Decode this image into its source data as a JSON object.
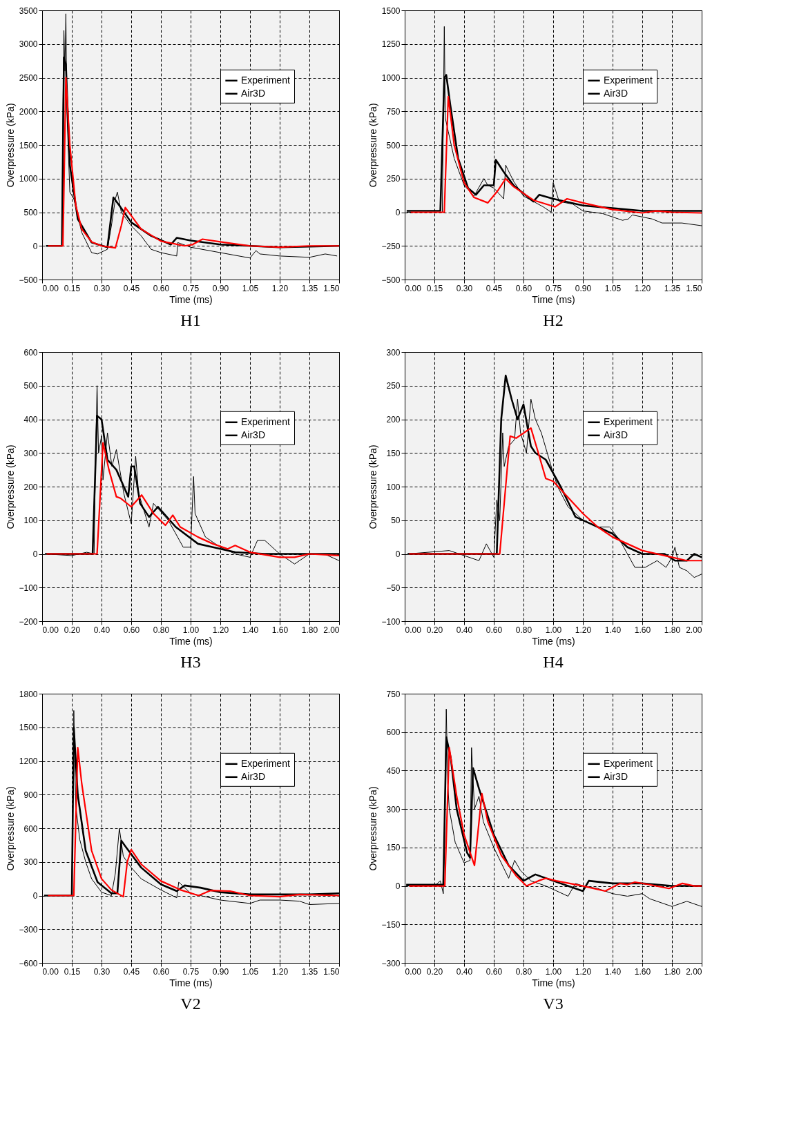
{
  "chart_data": [
    {
      "type": "line",
      "title": "H1",
      "xlabel": "Time (ms)",
      "ylabel": "Overpressure (kPa)",
      "legend": "top right",
      "grid": true,
      "line_style": "solid",
      "xlim": [
        0,
        1.5
      ],
      "ylim": [
        -500,
        3500
      ],
      "xticks": [
        {
          "value": 0,
          "label": "0.00"
        },
        {
          "value": 0.15,
          "label": "0.15"
        },
        {
          "value": 0.3,
          "label": "0.30"
        },
        {
          "value": 0.45,
          "label": "0.45"
        },
        {
          "value": 0.6,
          "label": "0.60"
        },
        {
          "value": 0.75,
          "label": "0.75"
        },
        {
          "value": 0.9,
          "label": "0.90"
        },
        {
          "value": 1.05,
          "label": "1.05"
        },
        {
          "value": 1.2,
          "label": "1.20"
        },
        {
          "value": 1.35,
          "label": "1.35"
        },
        {
          "value": 1.5,
          "label": "1.50"
        }
      ],
      "yticks": [
        -500,
        0,
        500,
        1000,
        1500,
        2000,
        2500,
        3000,
        3500
      ],
      "series": [
        {
          "name": "Experiment",
          "color": "#000000",
          "x": [
            0.02,
            0.1,
            0.105,
            0.11,
            0.115,
            0.12,
            0.125,
            0.14,
            0.16,
            0.2,
            0.25,
            0.28,
            0.33,
            0.35,
            0.37,
            0.38,
            0.4,
            0.45,
            0.5,
            0.55,
            0.6,
            0.68,
            0.685,
            0.75,
            0.9,
            1.05,
            1.08,
            1.1,
            1.2,
            1.35,
            1.43,
            1.49
          ],
          "values": [
            0,
            0,
            2000,
            3200,
            2600,
            3450,
            2000,
            800,
            700,
            200,
            -100,
            -120,
            -50,
            300,
            700,
            800,
            500,
            300,
            150,
            -50,
            -100,
            -150,
            50,
            -20,
            -100,
            -180,
            -70,
            -120,
            -150,
            -170,
            -120,
            -150
          ]
        },
        {
          "name": "Air3D",
          "color": "#000000",
          "x": [
            0.02,
            0.1,
            0.11,
            0.12,
            0.14,
            0.18,
            0.25,
            0.33,
            0.36,
            0.39,
            0.45,
            0.55,
            0.65,
            0.68,
            0.75,
            0.9,
            1.05,
            1.2,
            1.35,
            1.5
          ],
          "values": [
            0,
            0,
            2800,
            2700,
            1200,
            400,
            50,
            -20,
            720,
            600,
            350,
            150,
            20,
            120,
            80,
            20,
            0,
            -20,
            -10,
            0
          ]
        },
        {
          "color": "#ff0000",
          "x": [
            0.03,
            0.105,
            0.12,
            0.14,
            0.17,
            0.2,
            0.25,
            0.3,
            0.37,
            0.4,
            0.42,
            0.45,
            0.5,
            0.6,
            0.72,
            0.76,
            0.81,
            0.9,
            1.05,
            1.2,
            1.35,
            1.5
          ],
          "values": [
            0,
            0,
            2500,
            1500,
            600,
            250,
            60,
            0,
            -30,
            300,
            570,
            450,
            250,
            70,
            0,
            20,
            100,
            60,
            0,
            -20,
            0,
            0
          ]
        }
      ]
    },
    {
      "type": "line",
      "title": "H2",
      "xlabel": "Time (ms)",
      "ylabel": "Overpressure (kPa)",
      "legend": "top right",
      "grid": true,
      "line_style": "solid",
      "xlim": [
        0,
        1.5
      ],
      "ylim": [
        -500,
        1500
      ],
      "xticks": [
        {
          "value": 0,
          "label": "0.00"
        },
        {
          "value": 0.15,
          "label": "0.15"
        },
        {
          "value": 0.3,
          "label": "0.30"
        },
        {
          "value": 0.45,
          "label": "0.45"
        },
        {
          "value": 0.6,
          "label": "0.60"
        },
        {
          "value": 0.75,
          "label": "0.75"
        },
        {
          "value": 0.9,
          "label": "0.90"
        },
        {
          "value": 1.05,
          "label": "1.05"
        },
        {
          "value": 1.2,
          "label": "1.20"
        },
        {
          "value": 1.35,
          "label": "1.35"
        },
        {
          "value": 1.5,
          "label": "1.50"
        }
      ],
      "yticks": [
        -500,
        -250,
        0,
        250,
        500,
        750,
        1000,
        1250,
        1500
      ],
      "series": [
        {
          "name": "Experiment",
          "color": "#000000",
          "x": [
            0.01,
            0.19,
            0.2,
            0.205,
            0.22,
            0.25,
            0.3,
            0.35,
            0.4,
            0.42,
            0.45,
            0.5,
            0.51,
            0.55,
            0.6,
            0.7,
            0.74,
            0.75,
            0.78,
            0.85,
            0.9,
            1.0,
            1.1,
            1.13,
            1.15,
            1.25,
            1.3,
            1.4,
            1.5
          ],
          "values": [
            0,
            0,
            1380,
            700,
            600,
            400,
            200,
            120,
            250,
            200,
            180,
            100,
            350,
            230,
            120,
            40,
            0,
            220,
            80,
            60,
            10,
            -10,
            -60,
            -50,
            -20,
            -50,
            -80,
            -80,
            -100
          ]
        },
        {
          "name": "Air3D",
          "color": "#000000",
          "x": [
            0.01,
            0.18,
            0.2,
            0.21,
            0.23,
            0.27,
            0.32,
            0.36,
            0.4,
            0.45,
            0.46,
            0.5,
            0.55,
            0.65,
            0.68,
            0.75,
            0.9,
            1.05,
            1.2,
            1.35,
            1.5
          ],
          "values": [
            10,
            10,
            1000,
            1020,
            800,
            400,
            180,
            130,
            200,
            200,
            390,
            300,
            200,
            80,
            130,
            100,
            50,
            30,
            10,
            10,
            10
          ]
        },
        {
          "color": "#ff0000",
          "x": [
            0.03,
            0.2,
            0.22,
            0.25,
            0.3,
            0.35,
            0.42,
            0.47,
            0.51,
            0.55,
            0.65,
            0.76,
            0.82,
            0.9,
            1.05,
            1.2,
            1.27,
            1.35,
            1.5
          ],
          "values": [
            0,
            0,
            860,
            500,
            220,
            110,
            70,
            160,
            250,
            190,
            90,
            40,
            100,
            70,
            20,
            -5,
            10,
            0,
            -5
          ]
        }
      ]
    },
    {
      "type": "line",
      "title": "H3",
      "xlabel": "Time (ms)",
      "ylabel": "Overpressure (kPa)",
      "legend": "top right",
      "grid": true,
      "line_style": "solid",
      "xlim": [
        0,
        2
      ],
      "ylim": [
        -200,
        600
      ],
      "xticks": [
        {
          "value": 0,
          "label": "0.00"
        },
        {
          "value": 0.2,
          "label": "0.20"
        },
        {
          "value": 0.4,
          "label": "0.40"
        },
        {
          "value": 0.6,
          "label": "0.60"
        },
        {
          "value": 0.8,
          "label": "0.80"
        },
        {
          "value": 1.0,
          "label": "1.00"
        },
        {
          "value": 1.2,
          "label": "1.20"
        },
        {
          "value": 1.4,
          "label": "1.40"
        },
        {
          "value": 1.6,
          "label": "1.60"
        },
        {
          "value": 1.8,
          "label": "1.80"
        },
        {
          "value": 2.0,
          "label": "2.00"
        }
      ],
      "yticks": [
        -200,
        -100,
        0,
        100,
        200,
        300,
        400,
        500,
        600
      ],
      "series": [
        {
          "name": "Experiment",
          "color": "#000000",
          "x": [
            0.02,
            0.2,
            0.3,
            0.35,
            0.36,
            0.37,
            0.38,
            0.4,
            0.41,
            0.44,
            0.47,
            0.5,
            0.55,
            0.6,
            0.63,
            0.65,
            0.72,
            0.75,
            0.85,
            0.95,
            1.0,
            1.02,
            1.03,
            1.1,
            1.2,
            1.3,
            1.4,
            1.45,
            1.5,
            1.6,
            1.7,
            1.8,
            1.9,
            2.0
          ],
          "values": [
            0,
            -5,
            5,
            0,
            300,
            500,
            300,
            350,
            220,
            360,
            260,
            310,
            180,
            90,
            290,
            180,
            80,
            150,
            100,
            20,
            20,
            230,
            120,
            50,
            20,
            0,
            -10,
            40,
            40,
            0,
            -30,
            0,
            0,
            -20
          ]
        },
        {
          "name": "Air3D",
          "color": "#000000",
          "x": [
            0.02,
            0.34,
            0.37,
            0.4,
            0.44,
            0.5,
            0.58,
            0.6,
            0.62,
            0.66,
            0.72,
            0.78,
            0.9,
            1.05,
            1.15,
            1.3,
            1.5,
            1.7,
            2.0
          ],
          "values": [
            0,
            0,
            410,
            400,
            280,
            250,
            170,
            260,
            260,
            150,
            110,
            140,
            80,
            30,
            20,
            5,
            0,
            0,
            0
          ]
        },
        {
          "color": "#ff0000",
          "x": [
            0.03,
            0.37,
            0.41,
            0.45,
            0.5,
            0.53,
            0.6,
            0.67,
            0.75,
            0.83,
            0.88,
            0.93,
            1.05,
            1.15,
            1.25,
            1.3,
            1.4,
            1.6,
            1.7,
            1.8,
            2.0
          ],
          "values": [
            0,
            0,
            330,
            250,
            170,
            165,
            140,
            175,
            120,
            85,
            115,
            80,
            50,
            30,
            15,
            25,
            5,
            -10,
            -10,
            0,
            -5
          ]
        }
      ]
    },
    {
      "type": "line",
      "title": "H4",
      "xlabel": "Time (ms)",
      "ylabel": "Overpressure (kPa)",
      "legend": "top right",
      "grid": true,
      "line_style": "solid",
      "xlim": [
        0,
        2
      ],
      "ylim": [
        -100,
        300
      ],
      "xticks": [
        {
          "value": 0,
          "label": "0.00"
        },
        {
          "value": 0.2,
          "label": "0.20"
        },
        {
          "value": 0.4,
          "label": "0.40"
        },
        {
          "value": 0.6,
          "label": "0.60"
        },
        {
          "value": 0.8,
          "label": "0.80"
        },
        {
          "value": 1.0,
          "label": "1.00"
        },
        {
          "value": 1.2,
          "label": "1.20"
        },
        {
          "value": 1.4,
          "label": "1.40"
        },
        {
          "value": 1.6,
          "label": "1.60"
        },
        {
          "value": 1.8,
          "label": "1.80"
        },
        {
          "value": 2.0,
          "label": "2.00"
        }
      ],
      "yticks": [
        -100,
        -50,
        0,
        50,
        100,
        150,
        200,
        250,
        300
      ],
      "series": [
        {
          "name": "Experiment",
          "color": "#000000",
          "x": [
            0.02,
            0.3,
            0.5,
            0.55,
            0.6,
            0.62,
            0.64,
            0.66,
            0.67,
            0.7,
            0.74,
            0.76,
            0.78,
            0.82,
            0.85,
            0.88,
            0.92,
            0.96,
            1.0,
            1.03,
            1.1,
            1.2,
            1.3,
            1.38,
            1.45,
            1.5,
            1.55,
            1.62,
            1.7,
            1.76,
            1.8,
            1.82,
            1.85,
            1.9,
            1.95,
            2.0
          ],
          "values": [
            0,
            5,
            -10,
            15,
            -5,
            80,
            50,
            180,
            130,
            160,
            170,
            230,
            180,
            150,
            230,
            200,
            180,
            150,
            120,
            100,
            70,
            50,
            40,
            40,
            20,
            0,
            -20,
            -20,
            -10,
            -20,
            -5,
            10,
            -20,
            -25,
            -35,
            -30
          ]
        },
        {
          "name": "Air3D",
          "color": "#000000",
          "x": [
            0.02,
            0.62,
            0.65,
            0.68,
            0.72,
            0.76,
            0.8,
            0.85,
            0.88,
            0.95,
            1.05,
            1.15,
            1.25,
            1.4,
            1.5,
            1.6,
            1.75,
            1.82,
            1.9,
            1.95,
            2.0
          ],
          "values": [
            0,
            0,
            200,
            265,
            230,
            200,
            222,
            160,
            150,
            140,
            100,
            55,
            45,
            30,
            10,
            0,
            0,
            -10,
            -10,
            0,
            -5
          ]
        },
        {
          "color": "#ff0000",
          "x": [
            0.03,
            0.64,
            0.68,
            0.71,
            0.75,
            0.85,
            0.9,
            0.95,
            1.0,
            1.2,
            1.3,
            1.4,
            1.6,
            1.8,
            1.9,
            2.0
          ],
          "values": [
            0,
            0,
            100,
            175,
            172,
            187,
            150,
            112,
            108,
            60,
            40,
            25,
            5,
            -5,
            -10,
            -10
          ]
        }
      ]
    },
    {
      "type": "line",
      "title": "V2",
      "xlabel": "Time (ms)",
      "ylabel": "Overpressure (kPa)",
      "legend": "top right",
      "grid": true,
      "line_style": "solid",
      "xlim": [
        0,
        1.5
      ],
      "ylim": [
        -600,
        1800
      ],
      "xticks": [
        {
          "value": 0,
          "label": "0.00"
        },
        {
          "value": 0.15,
          "label": "0.15"
        },
        {
          "value": 0.3,
          "label": "0.30"
        },
        {
          "value": 0.45,
          "label": "0.45"
        },
        {
          "value": 0.6,
          "label": "0.60"
        },
        {
          "value": 0.75,
          "label": "0.75"
        },
        {
          "value": 0.9,
          "label": "0.90"
        },
        {
          "value": 1.05,
          "label": "1.05"
        },
        {
          "value": 1.2,
          "label": "1.20"
        },
        {
          "value": 1.35,
          "label": "1.35"
        },
        {
          "value": 1.5,
          "label": "1.50"
        }
      ],
      "yticks": [
        -600,
        -300,
        0,
        300,
        600,
        900,
        1200,
        1500,
        1800
      ],
      "series": [
        {
          "name": "Experiment",
          "color": "#000000",
          "x": [
            0.01,
            0.15,
            0.16,
            0.17,
            0.19,
            0.22,
            0.25,
            0.3,
            0.35,
            0.37,
            0.39,
            0.41,
            0.45,
            0.5,
            0.6,
            0.68,
            0.69,
            0.75,
            0.8,
            0.9,
            1.05,
            1.1,
            1.2,
            1.3,
            1.35,
            1.5
          ],
          "values": [
            0,
            0,
            1650,
            800,
            500,
            300,
            150,
            30,
            0,
            200,
            600,
            350,
            250,
            150,
            50,
            -20,
            120,
            20,
            0,
            -40,
            -70,
            -40,
            -40,
            -50,
            -80,
            -70
          ]
        },
        {
          "name": "Air3D",
          "color": "#000000",
          "x": [
            0.01,
            0.15,
            0.16,
            0.18,
            0.22,
            0.28,
            0.35,
            0.38,
            0.4,
            0.42,
            0.5,
            0.6,
            0.68,
            0.72,
            0.8,
            0.9,
            1.05,
            1.2,
            1.35,
            1.5
          ],
          "values": [
            0,
            0,
            1500,
            900,
            400,
            120,
            20,
            20,
            490,
            440,
            250,
            100,
            40,
            90,
            70,
            30,
            10,
            10,
            10,
            20
          ]
        },
        {
          "color": "#ff0000",
          "x": [
            0.03,
            0.16,
            0.18,
            0.2,
            0.25,
            0.3,
            0.35,
            0.41,
            0.43,
            0.45,
            0.5,
            0.6,
            0.7,
            0.79,
            0.85,
            0.95,
            1.05,
            1.2,
            1.3,
            1.5
          ],
          "values": [
            0,
            0,
            1320,
            1000,
            400,
            150,
            50,
            -10,
            300,
            410,
            280,
            130,
            50,
            0,
            45,
            40,
            0,
            -10,
            10,
            0
          ]
        }
      ]
    },
    {
      "type": "line",
      "title": "V3",
      "xlabel": "Time (ms)",
      "ylabel": "Overpressure (kPa)",
      "legend": "top right",
      "grid": true,
      "line_style": "solid",
      "xlim": [
        0,
        2
      ],
      "ylim": [
        -300,
        750
      ],
      "xticks": [
        {
          "value": 0,
          "label": "0.00"
        },
        {
          "value": 0.2,
          "label": "0.20"
        },
        {
          "value": 0.4,
          "label": "0.40"
        },
        {
          "value": 0.6,
          "label": "0.60"
        },
        {
          "value": 0.8,
          "label": "0.80"
        },
        {
          "value": 1.0,
          "label": "1.00"
        },
        {
          "value": 1.2,
          "label": "1.20"
        },
        {
          "value": 1.4,
          "label": "1.40"
        },
        {
          "value": 1.6,
          "label": "1.60"
        },
        {
          "value": 1.8,
          "label": "1.80"
        },
        {
          "value": 2.0,
          "label": "2.00"
        }
      ],
      "yticks": [
        -300,
        -150,
        0,
        150,
        300,
        450,
        600,
        750
      ],
      "series": [
        {
          "name": "Experiment",
          "color": "#000000",
          "x": [
            0.01,
            0.2,
            0.24,
            0.26,
            0.27,
            0.28,
            0.29,
            0.3,
            0.34,
            0.4,
            0.44,
            0.45,
            0.47,
            0.5,
            0.53,
            0.6,
            0.7,
            0.74,
            0.78,
            0.85,
            0.95,
            1.1,
            1.15,
            1.2,
            1.3,
            1.4,
            1.5,
            1.6,
            1.65,
            1.8,
            1.9,
            2.0
          ],
          "values": [
            0,
            0,
            20,
            -30,
            300,
            690,
            400,
            300,
            170,
            90,
            100,
            540,
            300,
            350,
            250,
            150,
            30,
            100,
            60,
            20,
            0,
            -40,
            10,
            0,
            -10,
            -30,
            -40,
            -30,
            -50,
            -80,
            -60,
            -80
          ]
        },
        {
          "name": "Air3D",
          "color": "#000000",
          "x": [
            0.01,
            0.26,
            0.28,
            0.31,
            0.35,
            0.42,
            0.44,
            0.46,
            0.5,
            0.6,
            0.7,
            0.8,
            0.88,
            1.0,
            1.2,
            1.24,
            1.4,
            1.6,
            1.8,
            2.0
          ],
          "values": [
            5,
            5,
            580,
            500,
            300,
            130,
            110,
            460,
            380,
            200,
            80,
            20,
            45,
            20,
            -20,
            20,
            10,
            10,
            0,
            0
          ]
        },
        {
          "color": "#ff0000",
          "x": [
            0.03,
            0.27,
            0.3,
            0.35,
            0.4,
            0.47,
            0.52,
            0.56,
            0.65,
            0.75,
            0.82,
            0.9,
            0.95,
            1.02,
            1.2,
            1.35,
            1.45,
            1.5,
            1.55,
            1.65,
            1.78,
            1.87,
            1.95,
            2.0
          ],
          "values": [
            0,
            0,
            540,
            350,
            200,
            80,
            360,
            250,
            120,
            40,
            0,
            20,
            30,
            20,
            0,
            -20,
            10,
            5,
            15,
            5,
            -10,
            10,
            0,
            0
          ]
        }
      ]
    }
  ]
}
